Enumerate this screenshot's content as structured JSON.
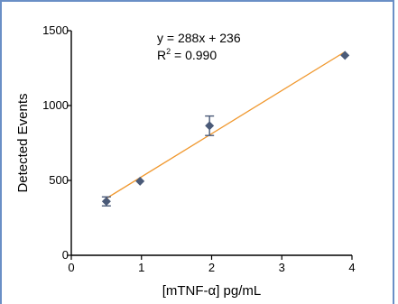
{
  "chart_data": {
    "type": "scatter",
    "xlabel": "[mTNF-α] pg/mL",
    "ylabel": "Detected  Events",
    "xlim": [
      0,
      4
    ],
    "ylim": [
      0,
      1500
    ],
    "xticks": [
      0,
      1,
      2,
      3,
      4
    ],
    "yticks": [
      0,
      500,
      1000,
      1500
    ],
    "points": [
      {
        "x": 0.5,
        "y": 360,
        "err": 30
      },
      {
        "x": 0.98,
        "y": 495,
        "err": 0
      },
      {
        "x": 1.97,
        "y": 865,
        "err": 65
      },
      {
        "x": 3.9,
        "y": 1335,
        "err": 0
      }
    ],
    "fit": {
      "slope": 288,
      "intercept": 236,
      "x_range": [
        0.5,
        3.9
      ]
    },
    "annotation": {
      "equation": "y = 288x + 236",
      "r2_prefix": "R",
      "r2_sup": "2",
      "r2_value": " = 0.990"
    },
    "colors": {
      "marker": "#4a5a78",
      "fit": "#f0982e",
      "frame": "#6a8fc6"
    },
    "grid": false
  }
}
